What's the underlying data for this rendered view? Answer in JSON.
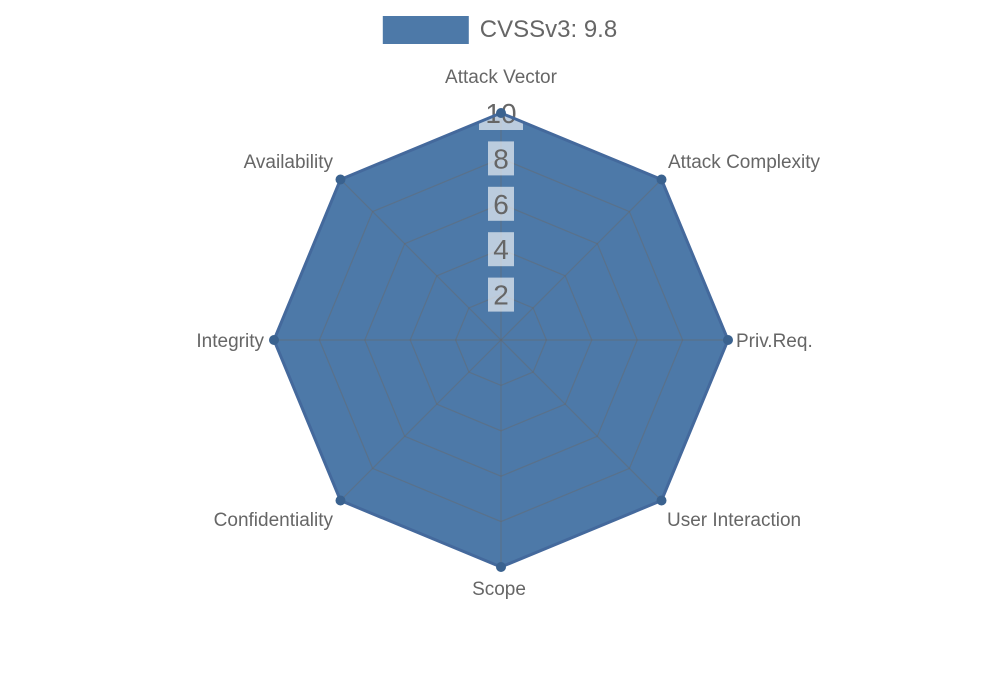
{
  "legend": {
    "label": "CVSSv3: 9.8",
    "position": "top"
  },
  "colors": {
    "fill": "#4d79a8",
    "border": "#44699c",
    "marker": "#3a628f",
    "grid": "rgba(105,105,105,0.45)",
    "label_text": "#666666",
    "tick_text": "#666666",
    "tick_backdrop": "rgba(255,255,255,0.62)",
    "legend_text": "#666666",
    "background": "#ffffff"
  },
  "chart_data": {
    "type": "radar",
    "title": "",
    "legend_position": "top",
    "categories": [
      "Attack Vector",
      "Attack Complexity",
      "Priv.Req.",
      "User Interaction",
      "Scope",
      "Confidentiality",
      "Integrity",
      "Availability"
    ],
    "series": [
      {
        "name": "CVSSv3: 9.8",
        "values": [
          10,
          10,
          10,
          10,
          10,
          10,
          10,
          10
        ]
      }
    ],
    "ticks": [
      2,
      4,
      6,
      8,
      10
    ],
    "rlim": [
      0,
      10
    ],
    "grid": true,
    "grid_shape": "polygon"
  }
}
